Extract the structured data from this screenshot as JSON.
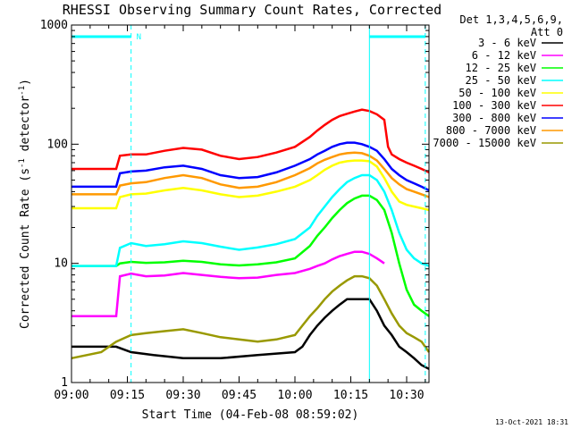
{
  "chart_data": {
    "type": "line",
    "title": "RHESSI Observing Summary Count Rates, Corrected",
    "xlabel": "Start Time (04-Feb-08 08:59:02)",
    "ylabel_main": "Corrected Count Rate (s",
    "ylabel_sup1": "-1",
    "ylabel_mid": " detector",
    "ylabel_sup2": "-1",
    "ylabel_end": ")",
    "y_scale": "log",
    "ylim": [
      1,
      1000
    ],
    "xlim_minutes": [
      0,
      96
    ],
    "x_ticks": [
      {
        "minute": 0,
        "label": "09:00"
      },
      {
        "minute": 15,
        "label": "09:15"
      },
      {
        "minute": 30,
        "label": "09:30"
      },
      {
        "minute": 45,
        "label": "09:45"
      },
      {
        "minute": 60,
        "label": "10:00"
      },
      {
        "minute": 75,
        "label": "10:15"
      },
      {
        "minute": 90,
        "label": "10:30"
      }
    ],
    "y_ticks": [
      {
        "value": 1,
        "label": "1"
      },
      {
        "value": 10,
        "label": "10"
      },
      {
        "value": 100,
        "label": "100"
      },
      {
        "value": 1000,
        "label": "1000"
      }
    ],
    "legend_header": [
      "Det 1,3,4,5,6,9,",
      "Att 0"
    ],
    "legend_position": "right",
    "flag_label": "N",
    "flag_bars": [
      [
        0,
        16
      ],
      [
        80,
        95
      ]
    ],
    "vlines_solid": [
      0,
      80
    ],
    "vlines_dashed": [
      16,
      95
    ],
    "timestamp": "13-Oct-2021 18:31",
    "series": [
      {
        "name": "3 - 6 keV",
        "color": "#000000",
        "x": [
          0,
          8,
          12,
          16,
          22,
          30,
          40,
          50,
          60,
          62,
          64,
          66,
          68,
          70,
          72,
          74,
          76,
          78,
          80,
          82,
          84,
          86,
          88,
          90,
          92,
          94,
          96
        ],
        "y": [
          2,
          2,
          2,
          1.8,
          1.7,
          1.6,
          1.6,
          1.7,
          1.8,
          2,
          2.5,
          3,
          3.5,
          4,
          4.5,
          5,
          5,
          5,
          5,
          4,
          3,
          2.5,
          2,
          1.8,
          1.6,
          1.4,
          1.3
        ]
      },
      {
        "name": "6 - 12 keV",
        "color": "#ff00ff",
        "x": [
          0,
          12,
          13,
          16,
          20,
          25,
          30,
          35,
          40,
          45,
          50,
          55,
          60,
          64,
          66,
          68,
          70,
          72,
          74,
          76,
          78,
          80,
          82,
          83,
          84
        ],
        "y": [
          3.6,
          3.6,
          7.8,
          8.2,
          7.8,
          7.9,
          8.3,
          8,
          7.7,
          7.5,
          7.6,
          8,
          8.3,
          9,
          9.5,
          10,
          10.8,
          11.5,
          12,
          12.5,
          12.5,
          12,
          11,
          10.5,
          10
        ]
      },
      {
        "name": "12 - 25 keV",
        "color": "#00ff00",
        "x": [
          0,
          12,
          13,
          16,
          20,
          25,
          30,
          35,
          40,
          45,
          50,
          55,
          60,
          64,
          66,
          68,
          70,
          72,
          74,
          76,
          78,
          80,
          82,
          84,
          86,
          88,
          90,
          92,
          94,
          96
        ],
        "y": [
          9.5,
          9.5,
          10,
          10.3,
          10.1,
          10.2,
          10.5,
          10.3,
          9.8,
          9.6,
          9.8,
          10.2,
          11,
          14,
          17,
          20,
          24,
          28,
          32,
          35,
          37,
          37,
          34,
          28,
          18,
          10,
          6,
          4.5,
          4,
          3.6
        ]
      },
      {
        "name": "25 - 50 keV",
        "color": "#00ffff",
        "x": [
          0,
          12,
          13,
          16,
          20,
          25,
          30,
          35,
          40,
          45,
          50,
          55,
          60,
          64,
          66,
          68,
          70,
          72,
          74,
          76,
          78,
          80,
          82,
          84,
          86,
          88,
          90,
          92,
          94,
          96
        ],
        "y": [
          9.5,
          9.5,
          13.5,
          14.8,
          14,
          14.5,
          15.3,
          14.8,
          13.8,
          13,
          13.6,
          14.5,
          16,
          20,
          25,
          30,
          36,
          42,
          48,
          52,
          55,
          55,
          50,
          40,
          28,
          18,
          13,
          11,
          10,
          9.5
        ]
      },
      {
        "name": "50 - 100 keV",
        "color": "#ffff00",
        "x": [
          0,
          12,
          13,
          16,
          20,
          25,
          30,
          35,
          40,
          45,
          50,
          55,
          60,
          64,
          66,
          68,
          70,
          72,
          74,
          76,
          78,
          80,
          82,
          84,
          86,
          88,
          90,
          92,
          94,
          96
        ],
        "y": [
          29,
          29,
          36,
          38,
          38.5,
          41,
          43,
          41,
          38,
          36,
          37,
          40,
          44,
          50,
          55,
          61,
          66,
          70,
          72,
          73,
          73,
          72,
          65,
          52,
          40,
          33,
          31,
          30,
          29,
          28
        ]
      },
      {
        "name": "100 - 300 keV",
        "color": "#ff0000",
        "x": [
          0,
          12,
          13,
          16,
          20,
          25,
          30,
          35,
          40,
          45,
          50,
          55,
          60,
          64,
          66,
          68,
          70,
          72,
          74,
          76,
          78,
          80,
          82,
          84,
          85,
          86,
          88,
          90,
          92,
          94,
          96
        ],
        "y": [
          62,
          62,
          80,
          82,
          82,
          88,
          93,
          90,
          80,
          75,
          78,
          85,
          95,
          115,
          130,
          145,
          160,
          172,
          180,
          188,
          195,
          190,
          178,
          160,
          95,
          82,
          75,
          70,
          66,
          62,
          58
        ]
      },
      {
        "name": "300 - 800 keV",
        "color": "#0000ff",
        "x": [
          0,
          12,
          13,
          16,
          20,
          25,
          30,
          35,
          40,
          45,
          50,
          55,
          60,
          64,
          66,
          68,
          70,
          72,
          74,
          76,
          78,
          80,
          82,
          84,
          86,
          88,
          90,
          92,
          94,
          96
        ],
        "y": [
          44,
          44,
          57,
          59,
          60,
          64,
          66,
          62,
          55,
          52,
          53,
          58,
          66,
          75,
          82,
          88,
          95,
          100,
          103,
          103,
          100,
          95,
          88,
          75,
          62,
          55,
          50,
          47,
          44,
          41
        ]
      },
      {
        "name": "800 - 7000 keV",
        "color": "#ff9900",
        "x": [
          0,
          12,
          13,
          16,
          20,
          25,
          30,
          35,
          40,
          45,
          50,
          55,
          60,
          64,
          66,
          68,
          70,
          72,
          74,
          76,
          78,
          80,
          82,
          84,
          86,
          88,
          90,
          92,
          94,
          96
        ],
        "y": [
          38,
          38,
          45,
          47,
          48,
          52,
          55,
          52,
          46,
          43,
          44,
          48,
          55,
          63,
          69,
          74,
          78,
          82,
          84,
          85,
          84,
          80,
          73,
          62,
          52,
          46,
          42,
          40,
          38,
          36
        ]
      },
      {
        "name": "7000 - 15000 keV",
        "color": "#999900",
        "x": [
          0,
          8,
          12,
          16,
          20,
          25,
          30,
          35,
          40,
          45,
          50,
          55,
          60,
          62,
          64,
          66,
          68,
          70,
          72,
          74,
          76,
          78,
          80,
          82,
          84,
          86,
          88,
          90,
          92,
          94,
          96
        ],
        "y": [
          1.6,
          1.8,
          2.2,
          2.5,
          2.6,
          2.7,
          2.8,
          2.6,
          2.4,
          2.3,
          2.2,
          2.3,
          2.5,
          3,
          3.6,
          4.2,
          5,
          5.8,
          6.5,
          7.2,
          7.8,
          7.8,
          7.5,
          6.5,
          5,
          3.8,
          3,
          2.6,
          2.4,
          2.2,
          1.8
        ]
      }
    ]
  }
}
